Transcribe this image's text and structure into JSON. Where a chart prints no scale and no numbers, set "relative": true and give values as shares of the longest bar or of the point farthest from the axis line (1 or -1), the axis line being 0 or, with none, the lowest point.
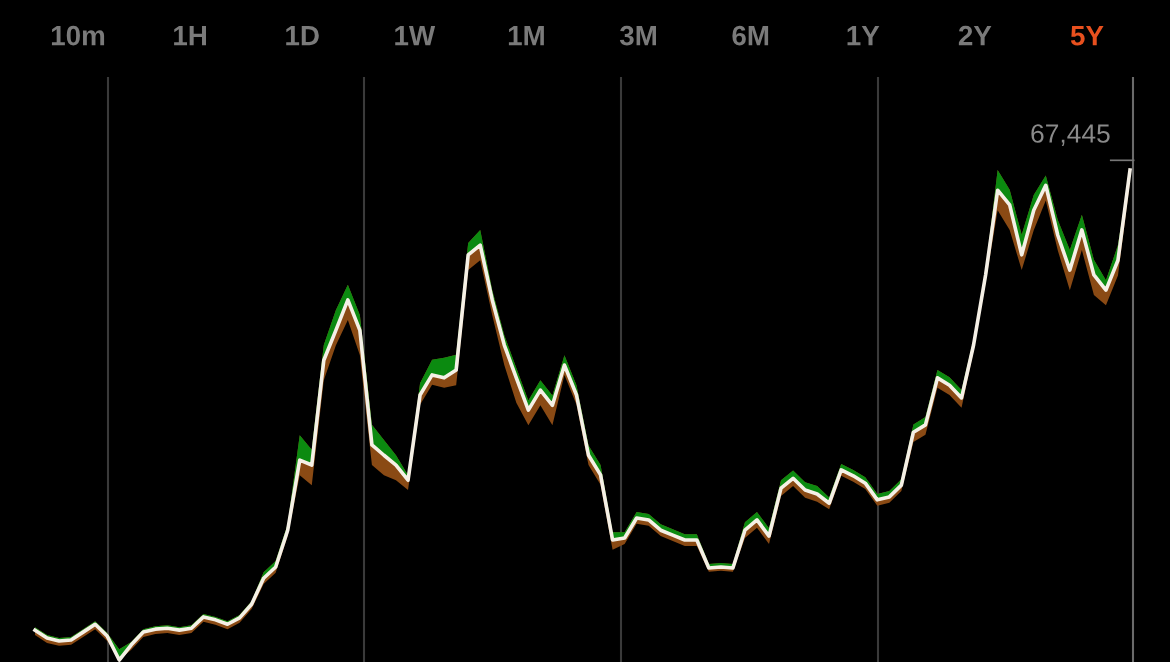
{
  "chart_data": {
    "type": "line",
    "relative": true,
    "categories": [
      null,
      null,
      null,
      null,
      null,
      null,
      null,
      null,
      null,
      null,
      null,
      null,
      null,
      null,
      null,
      null,
      null,
      null,
      null,
      null,
      null,
      null,
      null,
      null,
      null,
      null,
      null,
      null,
      null,
      null,
      null,
      null,
      null,
      null,
      null,
      null,
      null,
      null,
      null,
      null,
      null,
      null,
      null,
      null,
      null,
      null,
      null,
      null,
      null,
      null,
      null,
      null,
      null,
      null,
      null,
      null,
      null,
      null,
      null,
      null,
      null,
      null,
      null,
      null,
      null,
      null,
      null,
      null,
      null,
      null,
      null,
      null,
      null,
      null,
      null,
      null,
      null,
      null,
      null,
      null,
      null,
      null,
      null,
      null,
      null,
      null,
      null,
      null,
      null,
      null,
      null,
      null
    ],
    "series": [
      {
        "color": "#f5f0e6",
        "values": [
          0.061,
          0.045,
          0.039,
          0.041,
          0.057,
          0.073,
          0.049,
          0.0,
          0.031,
          0.057,
          0.063,
          0.065,
          0.061,
          0.065,
          0.088,
          0.082,
          0.073,
          0.086,
          0.114,
          0.167,
          0.19,
          0.265,
          0.408,
          0.398,
          0.612,
          0.673,
          0.735,
          0.673,
          0.439,
          0.418,
          0.398,
          0.367,
          0.541,
          0.582,
          0.576,
          0.592,
          0.827,
          0.847,
          0.735,
          0.643,
          0.576,
          0.51,
          0.551,
          0.52,
          0.602,
          0.541,
          0.418,
          0.378,
          0.245,
          0.249,
          0.29,
          0.286,
          0.265,
          0.255,
          0.245,
          0.245,
          0.188,
          0.19,
          0.188,
          0.265,
          0.286,
          0.253,
          0.351,
          0.371,
          0.347,
          0.339,
          0.32,
          0.388,
          0.376,
          0.361,
          0.327,
          0.333,
          0.357,
          0.465,
          0.48,
          0.576,
          0.561,
          0.535,
          0.643,
          0.786,
          0.959,
          0.929,
          0.827,
          0.918,
          0.969,
          0.867,
          0.796,
          0.878,
          0.786,
          0.755,
          0.816,
          1.0
        ],
        "upper": [
          0.067,
          0.051,
          0.045,
          0.047,
          0.063,
          0.079,
          0.055,
          0.022,
          0.037,
          0.063,
          0.069,
          0.071,
          0.067,
          0.071,
          0.094,
          0.088,
          0.079,
          0.092,
          0.12,
          0.179,
          0.202,
          0.277,
          0.459,
          0.429,
          0.643,
          0.714,
          0.766,
          0.704,
          0.48,
          0.449,
          0.418,
          0.377,
          0.565,
          0.613,
          0.617,
          0.623,
          0.851,
          0.878,
          0.755,
          0.663,
          0.596,
          0.53,
          0.571,
          0.54,
          0.622,
          0.561,
          0.438,
          0.398,
          0.261,
          0.261,
          0.302,
          0.298,
          0.277,
          0.267,
          0.257,
          0.257,
          0.196,
          0.198,
          0.196,
          0.281,
          0.302,
          0.269,
          0.367,
          0.387,
          0.363,
          0.355,
          0.332,
          0.4,
          0.388,
          0.373,
          0.339,
          0.345,
          0.369,
          0.481,
          0.496,
          0.592,
          0.577,
          0.551,
          0.655,
          0.796,
          1.0,
          0.96,
          0.868,
          0.949,
          0.989,
          0.898,
          0.837,
          0.909,
          0.817,
          0.775,
          0.847,
          1.0
        ],
        "lower": [
          0.051,
          0.035,
          0.029,
          0.031,
          0.047,
          0.063,
          0.039,
          0.0,
          0.021,
          0.047,
          0.053,
          0.055,
          0.051,
          0.055,
          0.078,
          0.072,
          0.063,
          0.076,
          0.104,
          0.155,
          0.178,
          0.253,
          0.377,
          0.357,
          0.571,
          0.642,
          0.694,
          0.622,
          0.398,
          0.377,
          0.367,
          0.347,
          0.521,
          0.562,
          0.556,
          0.561,
          0.796,
          0.816,
          0.704,
          0.602,
          0.525,
          0.479,
          0.52,
          0.479,
          0.582,
          0.521,
          0.398,
          0.358,
          0.225,
          0.237,
          0.278,
          0.274,
          0.253,
          0.243,
          0.233,
          0.233,
          0.18,
          0.182,
          0.18,
          0.249,
          0.27,
          0.237,
          0.335,
          0.355,
          0.331,
          0.323,
          0.308,
          0.376,
          0.364,
          0.349,
          0.315,
          0.321,
          0.345,
          0.445,
          0.46,
          0.556,
          0.541,
          0.515,
          0.631,
          0.77,
          0.918,
          0.878,
          0.796,
          0.877,
          0.938,
          0.836,
          0.755,
          0.837,
          0.745,
          0.724,
          0.785,
          0.976
        ]
      }
    ],
    "annotations": [
      "67,445",
      "10m",
      "1H",
      "1D",
      "1W",
      "1M",
      "3M",
      "6M",
      "1Y",
      "2Y",
      "5Y"
    ]
  }
}
